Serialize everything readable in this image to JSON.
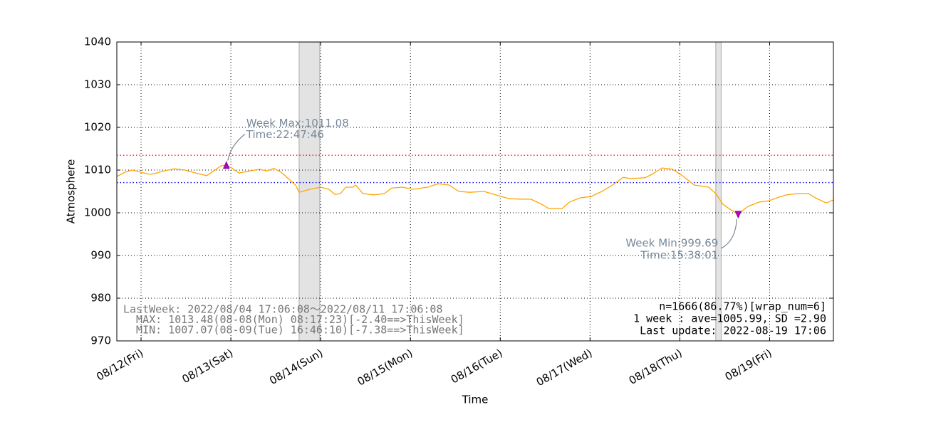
{
  "chart_data": {
    "type": "line",
    "xlabel": "Time",
    "ylabel": "Atmosphere",
    "color": "#ffa500",
    "x": [
      -0.27,
      -0.18,
      -0.1,
      0,
      0.1,
      0.17,
      0.25,
      0.37,
      0.49,
      0.61,
      0.73,
      0.81,
      0.89,
      0.95,
      1.01,
      1.09,
      1.21,
      1.32,
      1.4,
      1.48,
      1.56,
      1.64,
      1.72,
      1.76,
      1.88,
      2.0,
      2.09,
      2.16,
      2.22,
      2.28,
      2.36,
      2.39,
      2.47,
      2.59,
      2.71,
      2.79,
      2.91,
      3.03,
      3.19,
      3.31,
      3.43,
      3.54,
      3.66,
      3.82,
      3.98,
      4.1,
      4.22,
      4.34,
      4.46,
      4.54,
      4.69,
      4.77,
      4.89,
      5.01,
      5.13,
      5.25,
      5.37,
      5.45,
      5.61,
      5.69,
      5.8,
      5.92,
      6.04,
      6.16,
      6.32,
      6.4,
      6.48,
      6.56,
      6.65,
      6.76,
      6.88,
      6.99,
      7.11,
      7.19,
      7.31,
      7.43,
      7.51,
      7.63,
      7.71
    ],
    "values": [
      1008.5,
      1009.5,
      1010,
      1009.5,
      1009,
      1009.3,
      1009.8,
      1010.3,
      1010,
      1009.3,
      1008.7,
      1009.8,
      1011,
      1011.08,
      1010.5,
      1009.3,
      1009.8,
      1010.2,
      1009.8,
      1010.4,
      1009.5,
      1008,
      1006.5,
      1004.8,
      1005.5,
      1006,
      1005.5,
      1004.3,
      1004.5,
      1006,
      1006,
      1006.5,
      1004.5,
      1004.2,
      1004.5,
      1005.8,
      1006,
      1005.5,
      1006,
      1006.8,
      1006.5,
      1005,
      1004.8,
      1005,
      1004,
      1003.3,
      1003.2,
      1003.2,
      1002,
      1001,
      1001,
      1002.5,
      1003.5,
      1003.8,
      1005,
      1006.5,
      1008.3,
      1008,
      1008.2,
      1009,
      1010.5,
      1010.2,
      1008.5,
      1006.5,
      1006,
      1004.5,
      1002,
      1000.8,
      999.69,
      1001.5,
      1002.5,
      1002.8,
      1003.7,
      1004.2,
      1004.5,
      1004.5,
      1003.5,
      1002.3,
      1003
    ],
    "xlim": [
      -0.27,
      7.71
    ],
    "xticks": [
      {
        "value": 0,
        "label": "08/12(Fri)"
      },
      {
        "value": 1,
        "label": "08/13(Sat)"
      },
      {
        "value": 2,
        "label": "08/14(Sun)"
      },
      {
        "value": 3,
        "label": "08/15(Mon)"
      },
      {
        "value": 4,
        "label": "08/16(Tue)"
      },
      {
        "value": 5,
        "label": "08/17(Wed)"
      },
      {
        "value": 6,
        "label": "08/18(Thu)"
      },
      {
        "value": 7,
        "label": "08/19(Fri)"
      }
    ],
    "ylim": [
      970,
      1040
    ],
    "yticks": [
      970,
      980,
      990,
      1000,
      1010,
      1020,
      1030,
      1040
    ],
    "grid": true,
    "shaded_spans": [
      [
        1.76,
        1.99
      ],
      [
        6.4,
        6.46
      ]
    ],
    "reference_lines": [
      {
        "value": 1013.48,
        "color": "#ff0000"
      },
      {
        "value": 1007.07,
        "color": "#0000ff"
      }
    ],
    "extremes": [
      {
        "x": 0.95,
        "value": 1011.08,
        "marker": "up",
        "label": [
          "Week Max:1011.08",
          "Time:22:47:46"
        ]
      },
      {
        "x": 6.65,
        "value": 999.69,
        "marker": "down",
        "label": [
          "Week Min:999.69",
          "Time:15:38:01"
        ]
      }
    ],
    "notes_left": [
      "LastWeek: 2022/08/04 17:06:08～2022/08/11 17:06:08",
      "  MAX: 1013.48(08-08(Mon) 08:17:23)[-2.40==>ThisWeek]",
      "  MIN: 1007.07(08-09(Tue) 16:46:10)[-7.38==>ThisWeek]"
    ],
    "notes_right": [
      "n=1666(86.77%)[wrap_num=6]",
      "1 week : ave=1005.99, SD =2.90",
      "Last update: 2022-08-19 17:06"
    ]
  }
}
